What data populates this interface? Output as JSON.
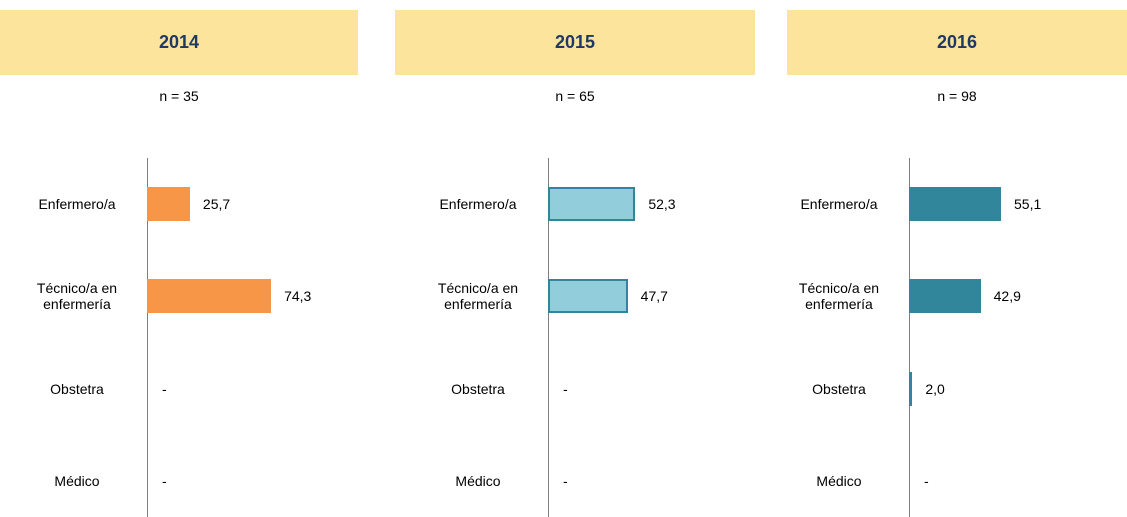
{
  "chart_data": [
    {
      "type": "bar",
      "title": "2014",
      "subtitle": "n = 35",
      "categories": [
        "Enfermero/a",
        "Técnico/a en enfermería",
        "Obstetra",
        "Médico"
      ],
      "values": [
        25.7,
        74.3,
        null,
        null
      ],
      "value_labels": [
        "25,7",
        "74,3",
        "-",
        "-"
      ],
      "color": "#f79646",
      "xlim": [
        0,
        100
      ]
    },
    {
      "type": "bar",
      "title": "2015",
      "subtitle": "n = 65",
      "categories": [
        "Enfermero/a",
        "Técnico/a en enfermería",
        "Obstetra",
        "Médico"
      ],
      "values": [
        52.3,
        47.7,
        null,
        null
      ],
      "value_labels": [
        "52,3",
        "47,7",
        "-",
        "-"
      ],
      "color": "#92cddc",
      "border_color": "#31859c",
      "xlim": [
        0,
        100
      ]
    },
    {
      "type": "bar",
      "title": "2016",
      "subtitle": "n = 98",
      "categories": [
        "Enfermero/a",
        "Técnico/a en enfermería",
        "Obstetra",
        "Médico"
      ],
      "values": [
        55.1,
        42.9,
        2.0,
        null
      ],
      "value_labels": [
        "55,1",
        "42,9",
        "2,0",
        "-"
      ],
      "color": "#31869b",
      "xlim": [
        0,
        100
      ]
    }
  ]
}
